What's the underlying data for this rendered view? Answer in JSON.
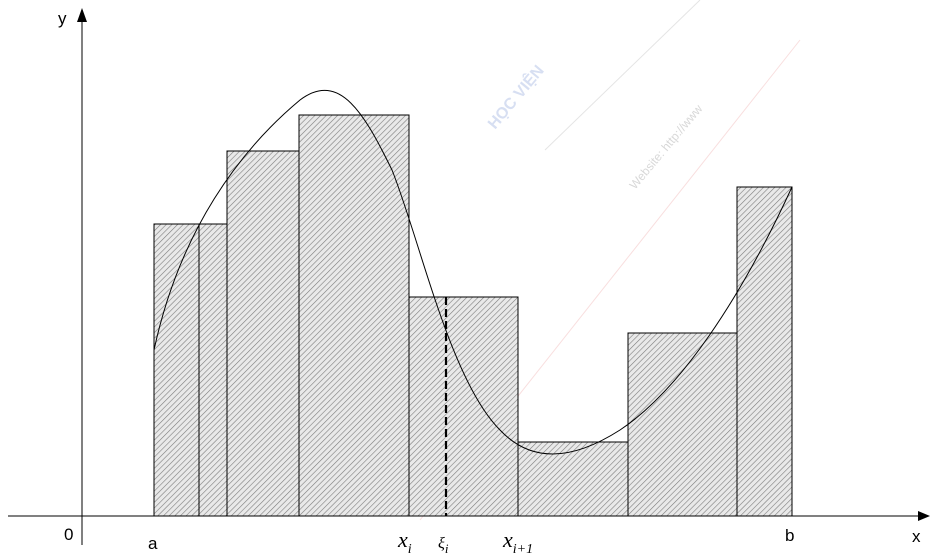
{
  "labels": {
    "y_axis": "y",
    "x_axis": "x",
    "origin": "0",
    "a": "a",
    "b": "b",
    "xi_base": "x",
    "xi_sub": "i",
    "xi1_base": "x",
    "xi1_sub": "i+1",
    "xi_greek_base": "ξ",
    "xi_greek_sub": "i"
  },
  "watermark": {
    "text_1": "HỌC VIỆN",
    "text_2": "Website: http://www",
    "color": "#b8c6e8"
  },
  "colors": {
    "stroke": "#000000",
    "hatch": "#7a7a7a",
    "fill": "#e8e8e8"
  }
}
